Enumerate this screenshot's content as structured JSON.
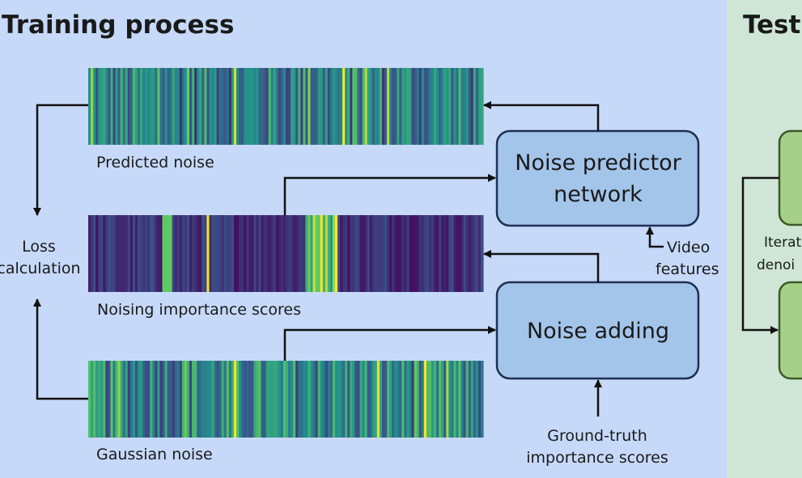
{
  "colors": {
    "training_bg": "#c6d9f8",
    "testing_bg": "#cfe6d6",
    "box_fill": "#a4c5ea",
    "box_stroke": "#1e2f55",
    "test_box_fill": "#a6d089",
    "test_box_stroke": "#3b5a26"
  },
  "training": {
    "title": "Training process",
    "predicted_noise_label": "Predicted noise",
    "noising_scores_label": "Noising importance scores",
    "gaussian_noise_label": "Gaussian noise",
    "loss_label_line1": "Loss",
    "loss_label_line2": "calculation",
    "predictor_line1": "Noise predictor",
    "predictor_line2": "network",
    "noise_adding": "Noise adding",
    "video_line1": "Video",
    "video_line2": "features",
    "gt_line1": "Ground-truth",
    "gt_line2": "importance scores"
  },
  "testing": {
    "title": "Testi",
    "iter_line1": "Iterat",
    "iter_line2": "denoi"
  }
}
